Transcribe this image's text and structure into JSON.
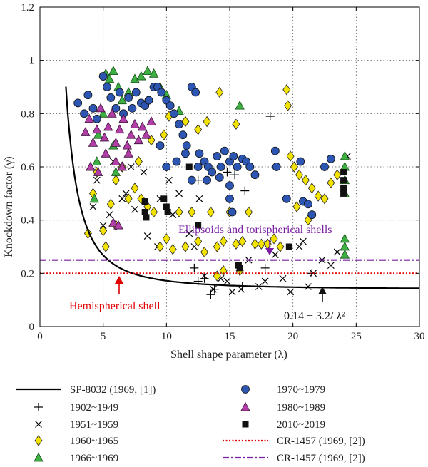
{
  "chart_data": {
    "type": "scatter",
    "xlabel": "Shell shape parameter (λ)",
    "ylabel": "Knockdown factor (γ)",
    "xlim": [
      0,
      30
    ],
    "ylim": [
      0,
      1.2
    ],
    "xticks": [
      "0",
      "5",
      "10",
      "15",
      "20",
      "25",
      "30"
    ],
    "yticks": [
      "0",
      "0.2",
      "0.4",
      "0.6",
      "0.8",
      "1",
      "1.2"
    ],
    "grid": true,
    "legend_position": "below",
    "annotations": {
      "ellipsoids": "Ellipsoids and torispherical shells",
      "hemispherical": "Hemispherical shell",
      "formula": "0.14 + 3.2/ λ²"
    },
    "series": [
      {
        "name": "SP-8032 (1969, [1])",
        "kind": "curve",
        "formula": "0.14 + 3.2/λ²",
        "x_range": [
          2.05,
          30
        ],
        "color": "#000000"
      },
      {
        "name": "1902~1949",
        "kind": "plus",
        "color": "#000000",
        "points": [
          [
            12.2,
            0.22
          ],
          [
            12.5,
            0.17
          ],
          [
            13.5,
            0.12
          ],
          [
            13.8,
            0.14
          ],
          [
            14.8,
            0.58
          ],
          [
            15.4,
            0.57
          ],
          [
            16.2,
            0.51
          ],
          [
            18.2,
            0.79
          ],
          [
            21.5,
            0.2
          ],
          [
            16,
            0.15
          ],
          [
            17.8,
            0.22
          ],
          [
            12.5,
            0.55
          ],
          [
            13,
            0.18
          ]
        ]
      },
      {
        "name": "1951~1959",
        "kind": "cross",
        "color": "#000000",
        "points": [
          [
            4.2,
            0.45
          ],
          [
            4.5,
            0.55
          ],
          [
            5.0,
            0.38
          ],
          [
            5.5,
            0.42
          ],
          [
            6.5,
            0.48
          ],
          [
            7.5,
            0.44
          ],
          [
            8.5,
            0.34
          ],
          [
            9.3,
            0.3
          ],
          [
            10.5,
            0.42
          ],
          [
            11.0,
            0.5
          ],
          [
            11.8,
            0.35
          ],
          [
            12.2,
            0.3
          ],
          [
            13.0,
            0.19
          ],
          [
            13.7,
            0.14
          ],
          [
            14.3,
            0.18
          ],
          [
            15.2,
            0.13
          ],
          [
            15.9,
            0.14
          ],
          [
            16.5,
            0.25
          ],
          [
            17.3,
            0.15
          ],
          [
            18.0,
            0.31
          ],
          [
            18.6,
            0.27
          ],
          [
            19.2,
            0.18
          ],
          [
            19.8,
            0.13
          ],
          [
            20.5,
            0.3
          ],
          [
            21.2,
            0.15
          ],
          [
            21.6,
            0.2
          ],
          [
            22.3,
            0.25
          ],
          [
            23.0,
            0.23
          ],
          [
            23.5,
            0.28
          ],
          [
            24.3,
            0.64
          ],
          [
            10.2,
            0.55
          ],
          [
            8.2,
            0.58
          ],
          [
            7.2,
            0.6
          ],
          [
            14.8,
            0.17
          ],
          [
            17.8,
            0.17
          ],
          [
            6.8,
            0.5
          ],
          [
            9.5,
            0.48
          ],
          [
            20.8,
            0.32
          ],
          [
            12.6,
            0.48
          ],
          [
            5.8,
            0.62
          ]
        ]
      },
      {
        "name": "1960~1965",
        "kind": "diamond",
        "color": "#f2e200",
        "edge": "#222222",
        "points": [
          [
            3.8,
            0.35
          ],
          [
            4.2,
            0.5
          ],
          [
            4.5,
            0.58
          ],
          [
            5.2,
            0.3
          ],
          [
            5.6,
            0.46
          ],
          [
            6.0,
            0.55
          ],
          [
            6.5,
            0.6
          ],
          [
            7.0,
            0.48
          ],
          [
            7.5,
            0.52
          ],
          [
            8.0,
            0.48
          ],
          [
            8.5,
            0.45
          ],
          [
            9.0,
            0.43
          ],
          [
            9.5,
            0.3
          ],
          [
            10.0,
            0.33
          ],
          [
            10.5,
            0.29
          ],
          [
            11.0,
            0.43
          ],
          [
            11.5,
            0.3
          ],
          [
            12.0,
            0.43
          ],
          [
            12.5,
            0.32
          ],
          [
            13.0,
            0.28
          ],
          [
            13.5,
            0.43
          ],
          [
            14.0,
            0.3
          ],
          [
            14.5,
            0.32
          ],
          [
            15.0,
            0.43
          ],
          [
            15.5,
            0.31
          ],
          [
            16.0,
            0.32
          ],
          [
            16.5,
            0.43
          ],
          [
            17.0,
            0.31
          ],
          [
            17.5,
            0.31
          ],
          [
            18.0,
            0.31
          ],
          [
            18.5,
            0.33
          ],
          [
            19.0,
            0.3
          ],
          [
            19.5,
            0.89
          ],
          [
            19.6,
            0.83
          ],
          [
            19.8,
            0.64
          ],
          [
            20.1,
            0.6
          ],
          [
            20.5,
            0.57
          ],
          [
            21.0,
            0.55
          ],
          [
            21.5,
            0.52
          ],
          [
            22.0,
            0.49
          ],
          [
            22.5,
            0.48
          ],
          [
            23.0,
            0.54
          ],
          [
            23.5,
            0.57
          ],
          [
            20.3,
            0.45
          ],
          [
            21.2,
            0.4
          ],
          [
            11.5,
            0.77
          ],
          [
            12.5,
            0.74
          ],
          [
            13.2,
            0.77
          ],
          [
            14.2,
            0.88
          ],
          [
            15.5,
            0.76
          ],
          [
            10.2,
            0.79
          ],
          [
            8.8,
            0.7
          ],
          [
            9.8,
            0.72
          ],
          [
            14.5,
            0.21
          ],
          [
            14.0,
            0.19
          ],
          [
            15.8,
            0.21
          ],
          [
            6.0,
            0.38
          ],
          [
            5.0,
            0.36
          ],
          [
            7.8,
            0.62
          ]
        ]
      },
      {
        "name": "1966~1969",
        "kind": "triangle",
        "color": "#3cb043",
        "edge": "#1a4d1a",
        "points": [
          [
            4.0,
            0.6
          ],
          [
            4.3,
            0.48
          ],
          [
            4.6,
            0.72
          ],
          [
            5.0,
            0.8
          ],
          [
            5.2,
            0.95
          ],
          [
            5.5,
            0.93
          ],
          [
            5.8,
            0.96
          ],
          [
            6.2,
            0.9
          ],
          [
            6.5,
            0.85
          ],
          [
            7.0,
            0.88
          ],
          [
            7.5,
            0.93
          ],
          [
            8.0,
            0.94
          ],
          [
            8.5,
            0.96
          ],
          [
            9.0,
            0.95
          ],
          [
            9.5,
            0.9
          ],
          [
            10.0,
            0.87
          ],
          [
            11.0,
            0.81
          ],
          [
            15.8,
            0.83
          ],
          [
            24.1,
            0.64
          ],
          [
            24.1,
            0.6
          ],
          [
            24.1,
            0.55
          ],
          [
            24.1,
            0.5
          ],
          [
            24.1,
            0.33
          ],
          [
            24.1,
            0.3
          ],
          [
            24.1,
            0.27
          ],
          [
            4.5,
            0.62
          ],
          [
            5.8,
            0.68
          ],
          [
            6.0,
            0.58
          ]
        ]
      },
      {
        "name": "1970~1979",
        "kind": "circle",
        "color": "#2d56b3",
        "edge": "#111111",
        "points": [
          [
            3.0,
            0.84
          ],
          [
            3.5,
            0.8
          ],
          [
            3.8,
            0.87
          ],
          [
            4.2,
            0.82
          ],
          [
            4.5,
            0.78
          ],
          [
            5.0,
            0.94
          ],
          [
            5.3,
            0.9
          ],
          [
            5.6,
            0.86
          ],
          [
            6.0,
            0.82
          ],
          [
            6.3,
            0.88
          ],
          [
            6.6,
            0.8
          ],
          [
            7.0,
            0.86
          ],
          [
            7.3,
            0.82
          ],
          [
            7.6,
            0.88
          ],
          [
            8.0,
            0.84
          ],
          [
            8.3,
            0.83
          ],
          [
            8.6,
            0.85
          ],
          [
            9.0,
            0.9
          ],
          [
            9.3,
            0.9
          ],
          [
            9.6,
            0.88
          ],
          [
            10.0,
            0.85
          ],
          [
            10.3,
            0.83
          ],
          [
            10.6,
            0.8
          ],
          [
            11.0,
            0.76
          ],
          [
            11.3,
            0.72
          ],
          [
            11.6,
            0.68
          ],
          [
            12.0,
            0.9
          ],
          [
            12.3,
            0.88
          ],
          [
            12.6,
            0.65
          ],
          [
            13.0,
            0.62
          ],
          [
            13.3,
            0.6
          ],
          [
            13.6,
            0.58
          ],
          [
            14.0,
            0.64
          ],
          [
            14.3,
            0.6
          ],
          [
            14.6,
            0.66
          ],
          [
            15.0,
            0.62
          ],
          [
            15.3,
            0.64
          ],
          [
            15.6,
            0.6
          ],
          [
            16.0,
            0.63
          ],
          [
            16.3,
            0.62
          ],
          [
            16.6,
            0.6
          ],
          [
            17.0,
            0.57
          ],
          [
            15.0,
            0.53
          ],
          [
            15.0,
            0.48
          ],
          [
            15.2,
            0.43
          ],
          [
            18.6,
            0.66
          ],
          [
            18.7,
            0.6
          ],
          [
            19.5,
            0.48
          ],
          [
            20.6,
            0.62
          ],
          [
            20.8,
            0.47
          ],
          [
            21.2,
            0.46
          ],
          [
            21.5,
            0.42
          ],
          [
            22.5,
            0.6
          ],
          [
            23.0,
            0.63
          ],
          [
            12.0,
            0.55
          ],
          [
            12.5,
            0.6
          ],
          [
            13.2,
            0.55
          ],
          [
            14.2,
            0.56
          ],
          [
            11.5,
            0.65
          ],
          [
            10.8,
            0.62
          ],
          [
            10.0,
            0.6
          ],
          [
            9.5,
            0.68
          ]
        ]
      },
      {
        "name": "1980~1989",
        "kind": "triangle",
        "color": "#b03ea6",
        "edge": "#3a1036",
        "points": [
          [
            3.6,
            0.73
          ],
          [
            3.9,
            0.78
          ],
          [
            4.2,
            0.69
          ],
          [
            4.5,
            0.74
          ],
          [
            4.8,
            0.82
          ],
          [
            5.1,
            0.71
          ],
          [
            5.4,
            0.75
          ],
          [
            5.7,
            0.8
          ],
          [
            6.0,
            0.69
          ],
          [
            6.3,
            0.74
          ],
          [
            6.6,
            0.78
          ],
          [
            6.9,
            0.68
          ],
          [
            7.2,
            0.72
          ],
          [
            7.5,
            0.76
          ],
          [
            7.8,
            0.7
          ],
          [
            8.1,
            0.75
          ],
          [
            8.4,
            0.72
          ],
          [
            8.8,
            0.77
          ],
          [
            5.2,
            0.65
          ],
          [
            6.0,
            0.62
          ],
          [
            6.5,
            0.6
          ],
          [
            7.0,
            0.65
          ],
          [
            4.0,
            0.6
          ],
          [
            4.6,
            0.58
          ],
          [
            5.8,
            0.39
          ],
          [
            6.2,
            0.38
          ]
        ]
      },
      {
        "name": "2010~2019",
        "kind": "square",
        "color": "#111111",
        "points": [
          [
            8.3,
            0.47
          ],
          [
            8.3,
            0.43
          ],
          [
            8.4,
            0.41
          ],
          [
            9.8,
            0.48
          ],
          [
            10.0,
            0.45
          ],
          [
            10.1,
            0.43
          ],
          [
            12.5,
            0.38
          ],
          [
            15.7,
            0.23
          ],
          [
            15.8,
            0.22
          ],
          [
            19.7,
            0.3
          ],
          [
            24.0,
            0.58
          ],
          [
            24.0,
            0.55
          ],
          [
            24.0,
            0.52
          ],
          [
            24.0,
            0.5
          ],
          [
            11.8,
            0.6
          ]
        ]
      },
      {
        "name": "CR-1457 (1969, [2])",
        "kind": "hline",
        "style": "dotted",
        "color": "#e00000",
        "y": 0.2
      },
      {
        "name": "CR-1457 (1969, [2])",
        "kind": "hline",
        "style": "dashdot",
        "color": "#7a1fa2",
        "y": 0.25
      }
    ]
  }
}
